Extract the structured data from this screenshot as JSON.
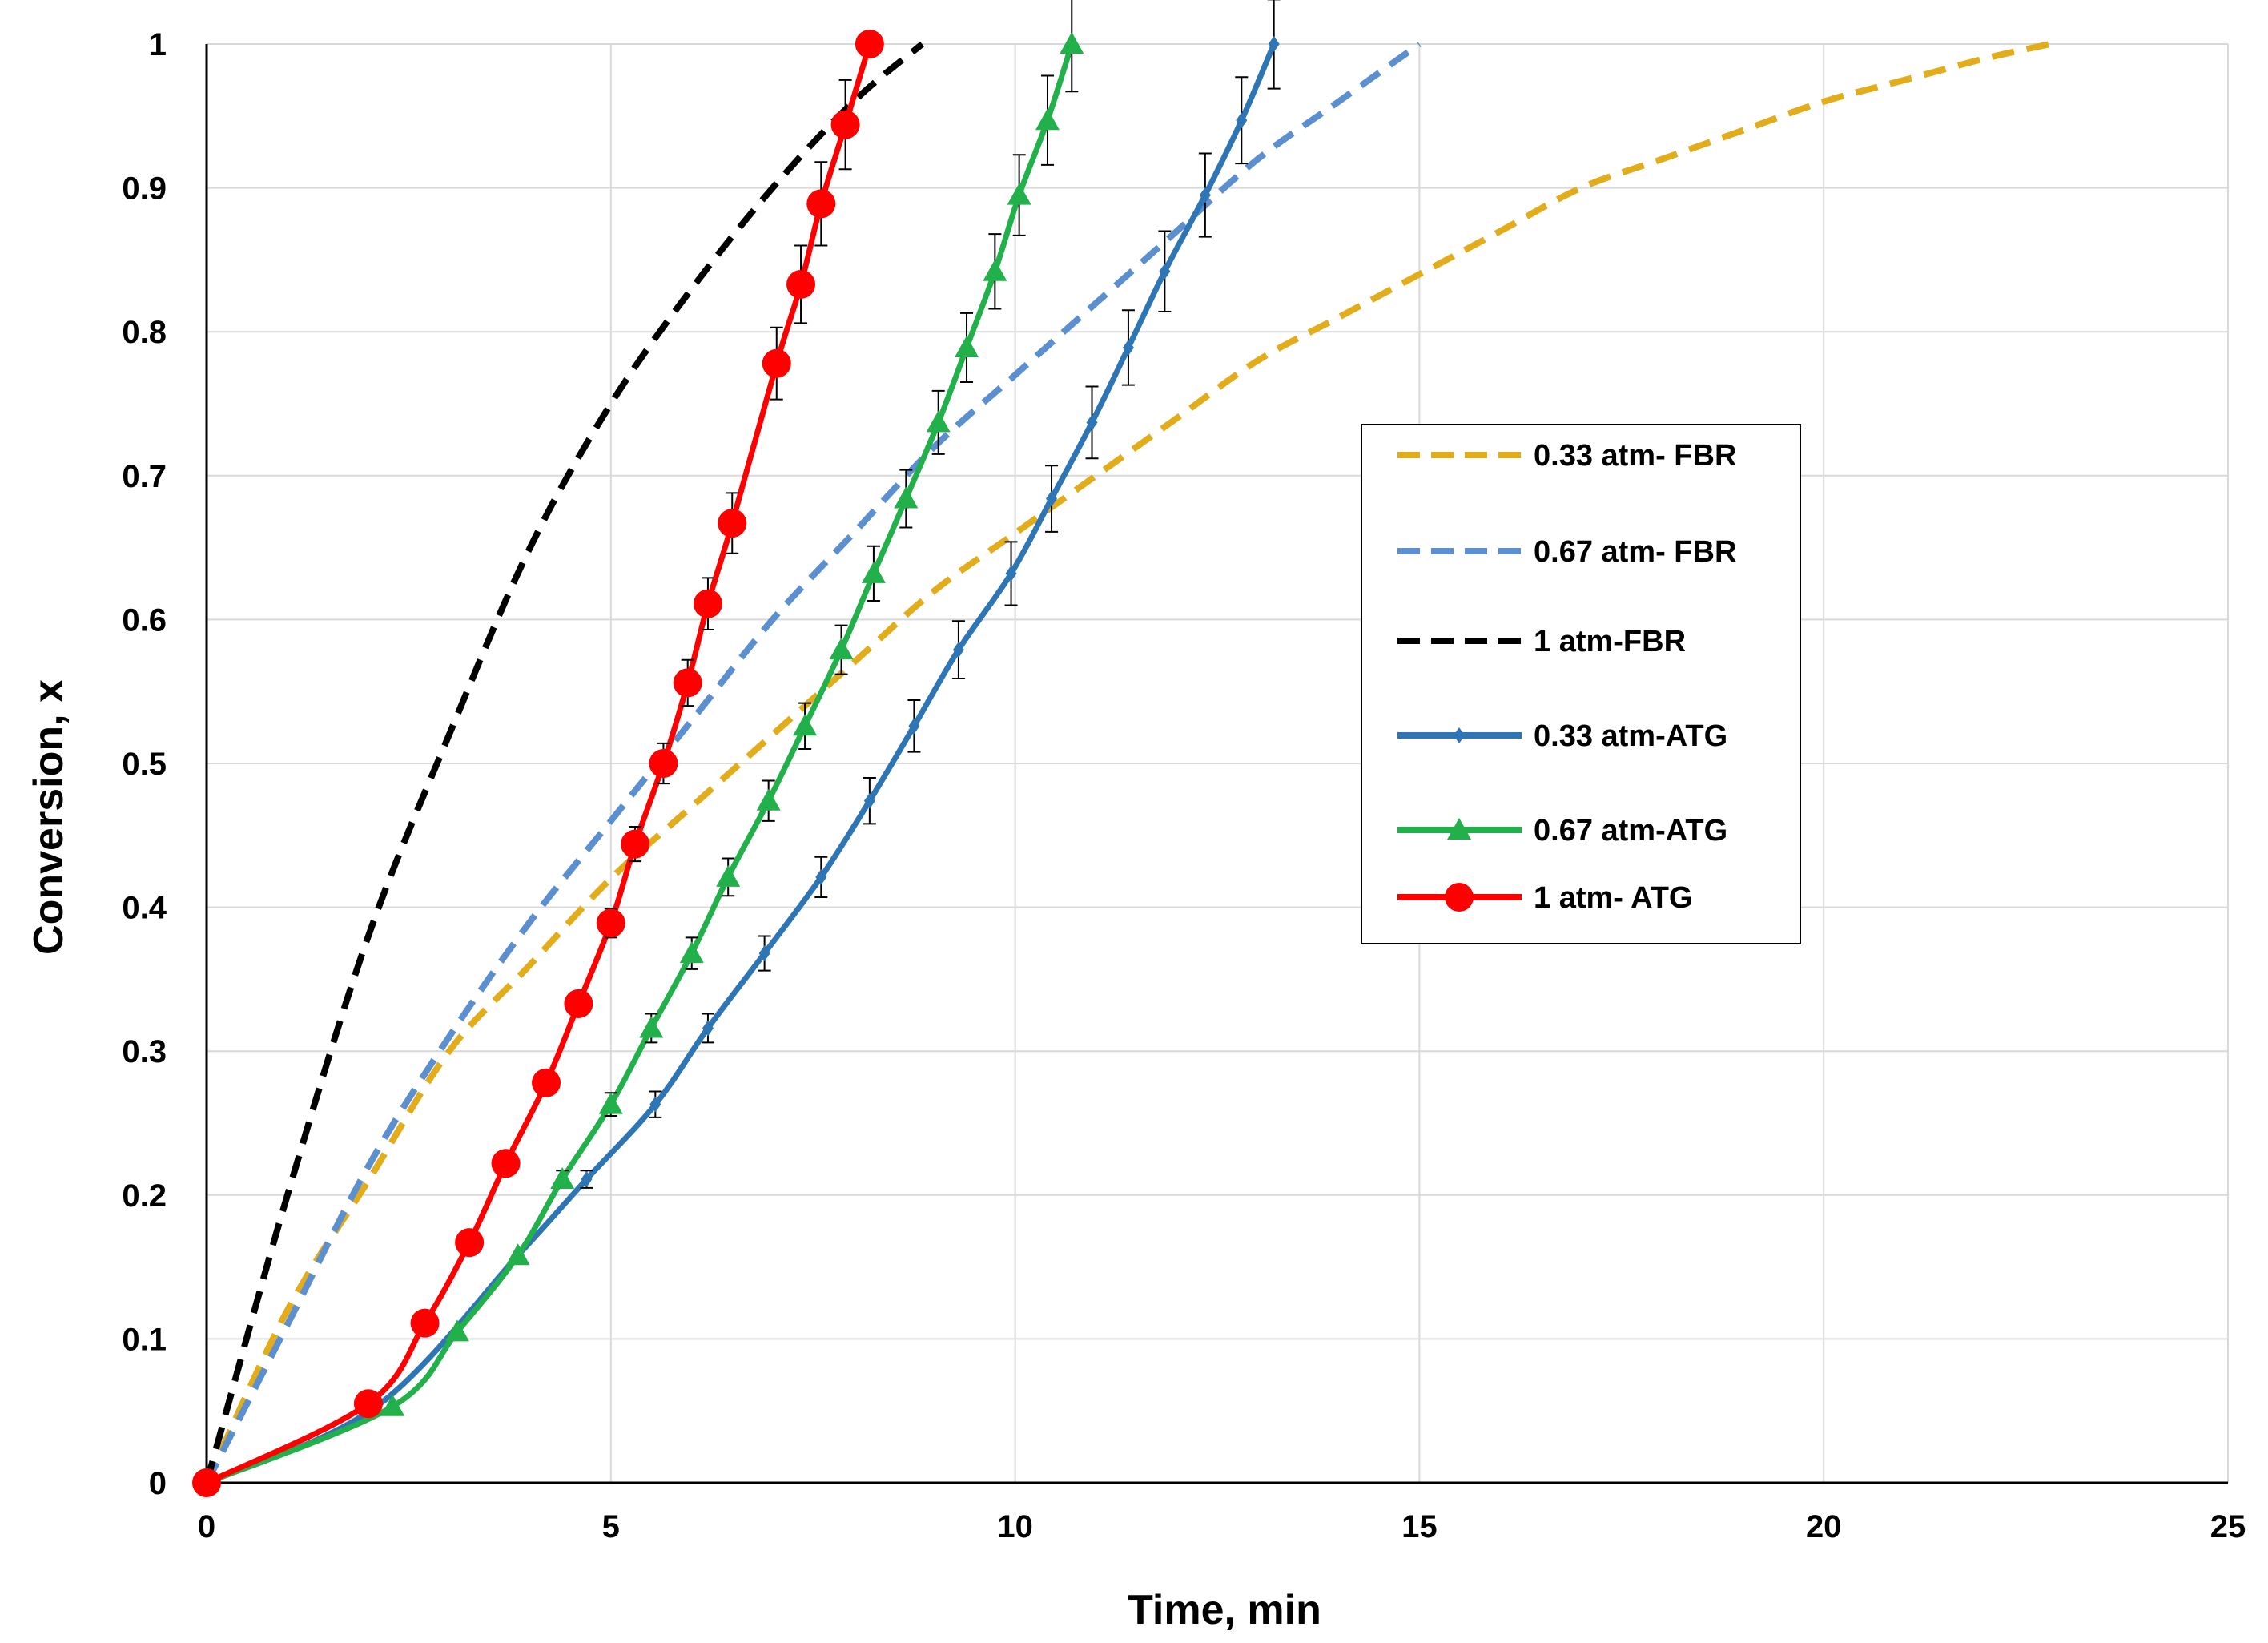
{
  "chart_data": {
    "type": "line",
    "title": "",
    "xlabel": "Time, min",
    "ylabel": "Conversion, x",
    "xlim": [
      0,
      25
    ],
    "ylim": [
      0,
      1
    ],
    "x_ticks": [
      0,
      5,
      10,
      15,
      20,
      25
    ],
    "x_tick_labels": [
      "0",
      "5",
      "10",
      "15",
      "20",
      "25"
    ],
    "y_ticks": [
      0,
      0.1,
      0.2,
      0.3,
      0.4,
      0.5,
      0.6,
      0.7,
      0.8,
      0.9,
      1
    ],
    "y_tick_labels": [
      "0",
      "0.1",
      "0.2",
      "0.3",
      "0.4",
      "0.5",
      "0.6",
      "0.7",
      "0.8",
      "0.9",
      "1"
    ],
    "grid": true,
    "legend_position": "right",
    "series": [
      {
        "name": "0.33 atm- FBR",
        "style": "dashed",
        "marker": "none",
        "color": "#E2AC1B",
        "x": [
          0,
          1,
          2,
          3,
          4,
          5,
          6,
          7,
          8,
          9,
          10,
          11,
          12,
          13,
          14,
          15,
          16,
          17,
          18,
          19,
          20,
          21,
          22,
          22.8
        ],
        "y": [
          0,
          0.12,
          0.21,
          0.3,
          0.36,
          0.42,
          0.47,
          0.52,
          0.57,
          0.62,
          0.66,
          0.7,
          0.74,
          0.78,
          0.81,
          0.84,
          0.87,
          0.9,
          0.92,
          0.94,
          0.96,
          0.975,
          0.99,
          1.0
        ]
      },
      {
        "name": "0.67 atm- FBR",
        "style": "dashed",
        "marker": "none",
        "color": "#5B8FCF",
        "x": [
          0,
          1,
          2,
          3,
          4,
          5,
          6,
          7,
          8,
          9,
          10,
          11,
          12,
          13,
          14,
          15
        ],
        "y": [
          0,
          0.11,
          0.22,
          0.31,
          0.39,
          0.46,
          0.53,
          0.6,
          0.66,
          0.72,
          0.77,
          0.82,
          0.87,
          0.92,
          0.96,
          1.0
        ]
      },
      {
        "name": "1 atm-FBR",
        "style": "dashed",
        "marker": "none",
        "color": "#000000",
        "x": [
          0,
          1,
          2,
          3,
          4,
          5,
          6,
          7,
          8,
          8.85
        ],
        "y": [
          0,
          0.2,
          0.38,
          0.52,
          0.65,
          0.75,
          0.83,
          0.9,
          0.96,
          1.0
        ]
      },
      {
        "name": "0.33 atm-ATG",
        "style": "solid",
        "marker": "diamond",
        "color": "#2E75B6",
        "x": [
          0,
          2.1,
          3.85,
          4.7,
          5.55,
          6.2,
          6.9,
          7.6,
          8.2,
          8.75,
          9.3,
          9.95,
          10.45,
          10.95,
          11.4,
          11.85,
          12.35,
          12.8,
          13.2
        ],
        "y": [
          0,
          0.053,
          0.158,
          0.211,
          0.263,
          0.316,
          0.368,
          0.421,
          0.474,
          0.526,
          0.579,
          0.632,
          0.684,
          0.737,
          0.789,
          0.842,
          0.895,
          0.947,
          1.0
        ],
        "error": [
          0,
          0,
          0,
          0.006,
          0.009,
          0.01,
          0.012,
          0.014,
          0.016,
          0.018,
          0.02,
          0.022,
          0.023,
          0.025,
          0.026,
          0.028,
          0.029,
          0.03,
          0.031
        ]
      },
      {
        "name": "0.67 atm-ATG",
        "style": "solid",
        "marker": "triangle",
        "color": "#22B04A",
        "x": [
          0,
          2.3,
          3.1,
          3.85,
          4.4,
          5.0,
          5.5,
          6.0,
          6.45,
          6.95,
          7.4,
          7.85,
          8.25,
          8.65,
          9.05,
          9.4,
          9.75,
          10.05,
          10.4,
          10.7
        ],
        "y": [
          0,
          0.053,
          0.105,
          0.158,
          0.211,
          0.263,
          0.316,
          0.368,
          0.421,
          0.474,
          0.526,
          0.579,
          0.632,
          0.684,
          0.737,
          0.789,
          0.842,
          0.895,
          0.947,
          1.0
        ],
        "error": [
          0,
          0,
          0,
          0,
          0.006,
          0.008,
          0.01,
          0.011,
          0.013,
          0.014,
          0.016,
          0.017,
          0.019,
          0.02,
          0.022,
          0.024,
          0.026,
          0.028,
          0.031,
          0.033
        ]
      },
      {
        "name": "1 atm- ATG",
        "style": "solid",
        "marker": "circle",
        "color": "#FF0000",
        "x": [
          0,
          2.0,
          2.7,
          3.25,
          3.7,
          4.2,
          4.6,
          5.0,
          5.3,
          5.65,
          5.95,
          6.2,
          6.5,
          7.05,
          7.35,
          7.6,
          7.9,
          8.2
        ],
        "y": [
          0,
          0.055,
          0.111,
          0.167,
          0.222,
          0.278,
          0.333,
          0.389,
          0.444,
          0.5,
          0.556,
          0.611,
          0.667,
          0.778,
          0.833,
          0.889,
          0.944,
          1.0
        ],
        "error": [
          0,
          0,
          0,
          0,
          0,
          0,
          0,
          0.01,
          0.012,
          0.014,
          0.016,
          0.018,
          0.021,
          0.025,
          0.027,
          0.029,
          0.031,
          0
        ]
      }
    ]
  }
}
